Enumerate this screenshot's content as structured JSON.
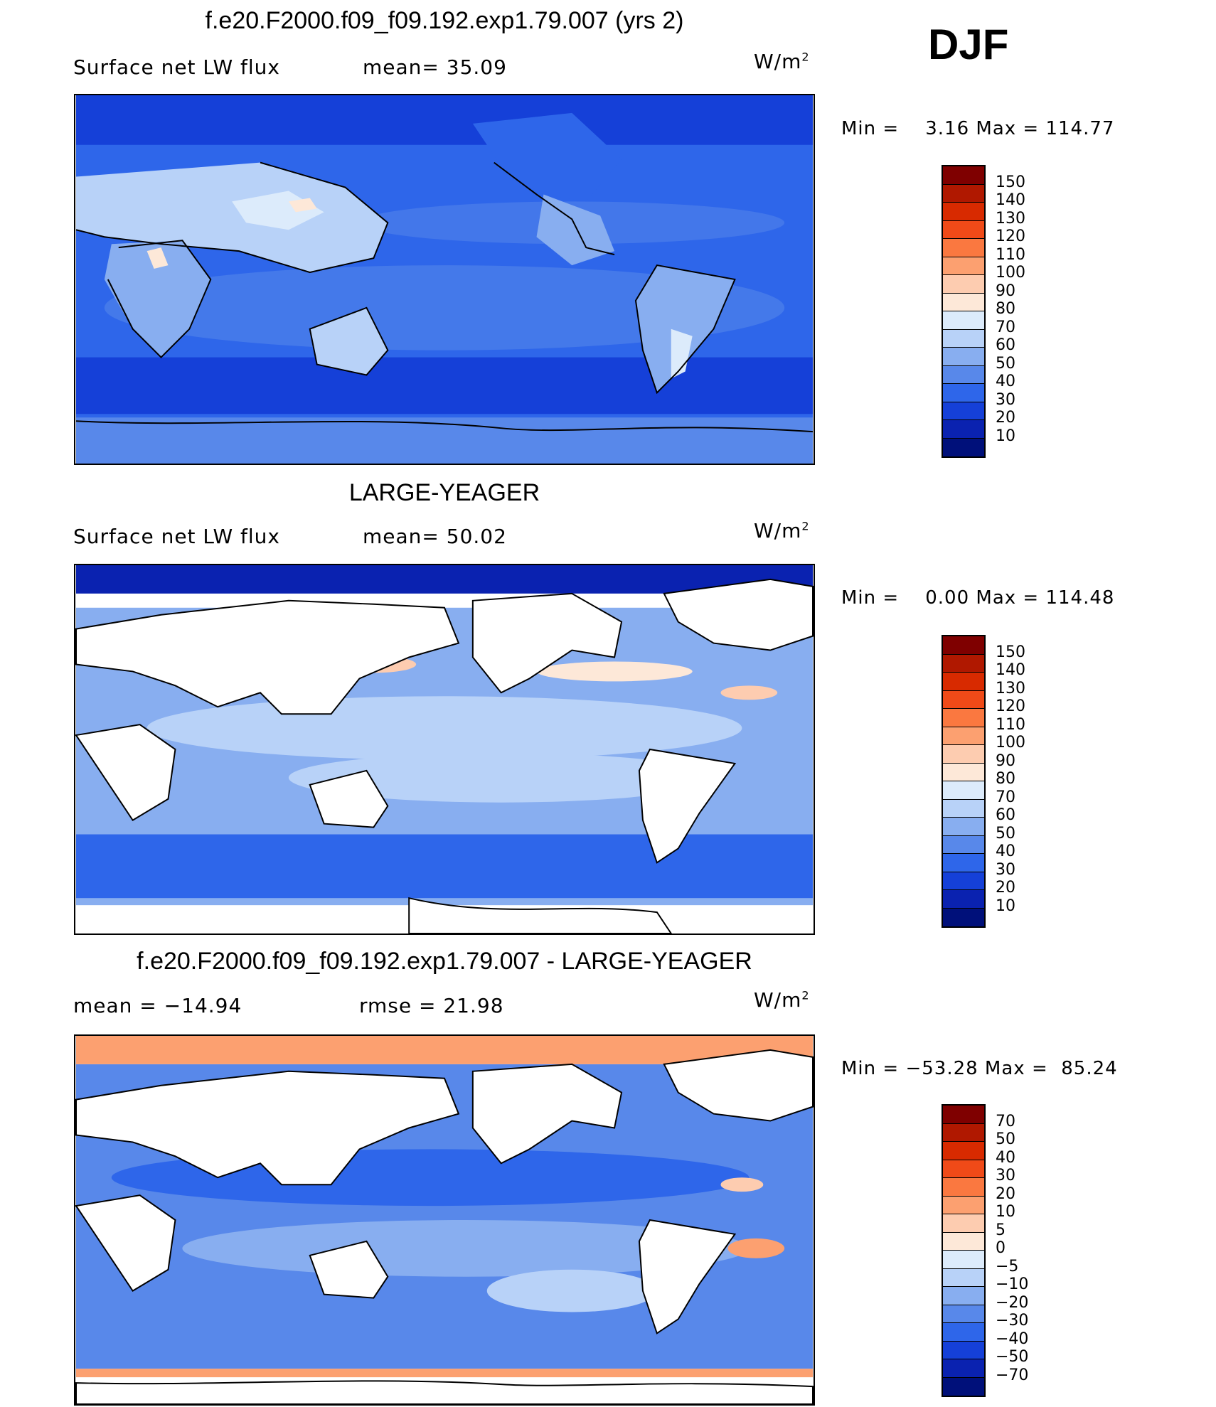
{
  "season": "DJF",
  "panels": [
    {
      "title": "f.e20.F2000.f09_f09.192.exp1.79.007 (yrs 2)",
      "left_label": "Surface net LW flux",
      "mid_label": "mean=  35.09",
      "units": "W/m",
      "units_sup": "2",
      "minmax": "Min =    3.16 Max = 114.77",
      "colorbar": {
        "labels": [
          "150",
          "140",
          "130",
          "120",
          "110",
          "100",
          "90",
          "80",
          "70",
          "60",
          "50",
          "40",
          "30",
          "20",
          "10"
        ],
        "colors": [
          "#7f0000",
          "#b01800",
          "#d82a00",
          "#f04a18",
          "#fa7840",
          "#fca070",
          "#fdccb0",
          "#fde8d8",
          "#dcebfb",
          "#b8d2f8",
          "#88aef0",
          "#5888ea",
          "#2e66ea",
          "#1540d8",
          "#0a22b0",
          "#00107a"
        ]
      }
    },
    {
      "title": "LARGE-YEAGER",
      "left_label": "Surface net LW flux",
      "mid_label": "mean=  50.02",
      "units": "W/m",
      "units_sup": "2",
      "minmax": "Min =    0.00 Max = 114.48",
      "colorbar": {
        "labels": [
          "150",
          "140",
          "130",
          "120",
          "110",
          "100",
          "90",
          "80",
          "70",
          "60",
          "50",
          "40",
          "30",
          "20",
          "10"
        ],
        "colors": [
          "#7f0000",
          "#b01800",
          "#d82a00",
          "#f04a18",
          "#fa7840",
          "#fca070",
          "#fdccb0",
          "#fde8d8",
          "#dcebfb",
          "#b8d2f8",
          "#88aef0",
          "#5888ea",
          "#2e66ea",
          "#1540d8",
          "#0a22b0",
          "#00107a"
        ]
      }
    },
    {
      "title": "f.e20.F2000.f09_f09.192.exp1.79.007 - LARGE-YEAGER",
      "left_label": "mean = −14.94",
      "mid_label": "rmse =  21.98",
      "units": "W/m",
      "units_sup": "2",
      "minmax": "Min = −53.28 Max =  85.24",
      "colorbar": {
        "labels": [
          "70",
          "50",
          "40",
          "30",
          "20",
          "10",
          "5",
          "0",
          "−5",
          "−10",
          "−20",
          "−30",
          "−40",
          "−50",
          "−70"
        ],
        "colors": [
          "#7f0000",
          "#b01800",
          "#d82a00",
          "#f04a18",
          "#fa7840",
          "#fca070",
          "#fdccb0",
          "#fde8d8",
          "#dcebfb",
          "#b8d2f8",
          "#88aef0",
          "#5888ea",
          "#2e66ea",
          "#1540d8",
          "#0a22b0",
          "#00107a"
        ]
      }
    }
  ]
}
